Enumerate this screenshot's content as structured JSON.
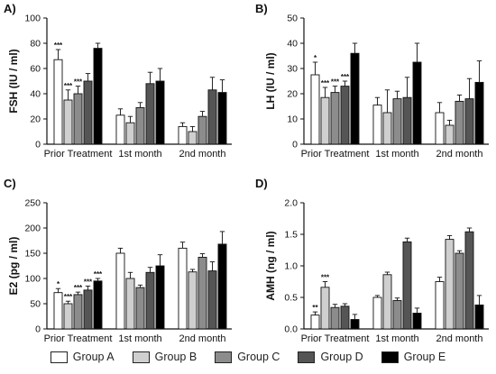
{
  "colors": {
    "Group A": "#ffffff",
    "Group B": "#cfcfcf",
    "Group C": "#8c8c8c",
    "Group D": "#555555",
    "Group E": "#000000"
  },
  "legend": [
    "Group A",
    "Group B",
    "Group C",
    "Group D",
    "Group E"
  ],
  "chart_data": [
    {
      "panel": "A)",
      "type": "bar",
      "ylabel": "FSH (IU / ml)",
      "ylim": [
        0,
        100
      ],
      "yticks": [
        "0",
        "20",
        "40",
        "60",
        "80",
        "100"
      ],
      "categories": [
        "Prior Treatment",
        "1st month",
        "2nd month"
      ],
      "series": [
        {
          "name": "Group A",
          "values": [
            67,
            23,
            14
          ],
          "errors": [
            8,
            5,
            3
          ],
          "stars": [
            "***",
            "",
            ""
          ]
        },
        {
          "name": "Group B",
          "values": [
            35,
            17,
            10
          ],
          "errors": [
            8,
            5,
            4
          ],
          "stars": [
            "***",
            "",
            ""
          ]
        },
        {
          "name": "Group C",
          "values": [
            40,
            29,
            22
          ],
          "errors": [
            6,
            4,
            4
          ],
          "stars": [
            "***",
            "",
            ""
          ]
        },
        {
          "name": "Group D",
          "values": [
            50,
            48,
            43
          ],
          "errors": [
            6,
            9,
            10
          ],
          "stars": [
            "",
            "",
            ""
          ]
        },
        {
          "name": "Group E",
          "values": [
            76,
            50,
            41
          ],
          "errors": [
            4,
            10,
            10
          ],
          "stars": [
            "",
            "",
            ""
          ]
        }
      ]
    },
    {
      "panel": "B)",
      "type": "bar",
      "ylabel": "LH (IU / ml)",
      "ylim": [
        0,
        50
      ],
      "yticks": [
        "0",
        "10",
        "20",
        "30",
        "40",
        "50"
      ],
      "categories": [
        "Prior Treatment",
        "1st month",
        "2nd month"
      ],
      "series": [
        {
          "name": "Group A",
          "values": [
            27.5,
            15.5,
            12.5
          ],
          "errors": [
            5,
            3,
            4
          ],
          "stars": [
            "*",
            "",
            ""
          ]
        },
        {
          "name": "Group B",
          "values": [
            18.5,
            12.5,
            7.5
          ],
          "errors": [
            4,
            9,
            2
          ],
          "stars": [
            "***",
            "",
            ""
          ]
        },
        {
          "name": "Group C",
          "values": [
            20.5,
            18,
            17
          ],
          "errors": [
            2.5,
            3,
            2.5
          ],
          "stars": [
            "***",
            "",
            ""
          ]
        },
        {
          "name": "Group D",
          "values": [
            23,
            18.5,
            18
          ],
          "errors": [
            2,
            8,
            8
          ],
          "stars": [
            "***",
            "",
            ""
          ]
        },
        {
          "name": "Group E",
          "values": [
            36,
            32.5,
            24.5
          ],
          "errors": [
            4,
            7.5,
            8.5
          ],
          "stars": [
            "",
            "",
            ""
          ]
        }
      ]
    },
    {
      "panel": "C)",
      "type": "bar",
      "ylabel": "E2 (pg / ml)",
      "ylim": [
        0,
        250
      ],
      "yticks": [
        "0",
        "50",
        "100",
        "150",
        "200",
        "250"
      ],
      "categories": [
        "Prior Treatment",
        "1st month",
        "2nd month"
      ],
      "series": [
        {
          "name": "Group A",
          "values": [
            72,
            150,
            160
          ],
          "errors": [
            8,
            10,
            12
          ],
          "stars": [
            "*",
            "",
            ""
          ]
        },
        {
          "name": "Group B",
          "values": [
            50,
            100,
            113
          ],
          "errors": [
            5,
            12,
            5
          ],
          "stars": [
            "***",
            "",
            ""
          ]
        },
        {
          "name": "Group C",
          "values": [
            68,
            82,
            142
          ],
          "errors": [
            5,
            5,
            7
          ],
          "stars": [
            "***",
            "",
            ""
          ]
        },
        {
          "name": "Group D",
          "values": [
            77,
            112,
            115
          ],
          "errors": [
            8,
            10,
            18
          ],
          "stars": [
            "***",
            "",
            ""
          ]
        },
        {
          "name": "Group E",
          "values": [
            95,
            125,
            168
          ],
          "errors": [
            5,
            22,
            25
          ],
          "stars": [
            "***",
            "",
            ""
          ]
        }
      ]
    },
    {
      "panel": "D)",
      "type": "bar",
      "ylabel": "AMH (ng / ml)",
      "ylim": [
        0,
        2.0
      ],
      "yticks": [
        "0.0",
        "0.5",
        "1.0",
        "1.5",
        "2.0"
      ],
      "categories": [
        "Prior Treatment",
        "1st month",
        "2nd month"
      ],
      "series": [
        {
          "name": "Group A",
          "values": [
            0.22,
            0.5,
            0.75
          ],
          "errors": [
            0.05,
            0.03,
            0.07
          ],
          "stars": [
            "**",
            "",
            ""
          ]
        },
        {
          "name": "Group B",
          "values": [
            0.66,
            0.86,
            1.42
          ],
          "errors": [
            0.09,
            0.04,
            0.06
          ],
          "stars": [
            "***",
            "",
            ""
          ]
        },
        {
          "name": "Group C",
          "values": [
            0.34,
            0.45,
            1.2
          ],
          "errors": [
            0.05,
            0.04,
            0.04
          ],
          "stars": [
            "",
            "",
            ""
          ]
        },
        {
          "name": "Group D",
          "values": [
            0.36,
            1.38,
            1.54
          ],
          "errors": [
            0.04,
            0.06,
            0.06
          ],
          "stars": [
            "",
            "",
            ""
          ]
        },
        {
          "name": "Group E",
          "values": [
            0.15,
            0.25,
            0.38
          ],
          "errors": [
            0.08,
            0.08,
            0.15
          ],
          "stars": [
            "",
            "",
            ""
          ]
        }
      ]
    }
  ]
}
